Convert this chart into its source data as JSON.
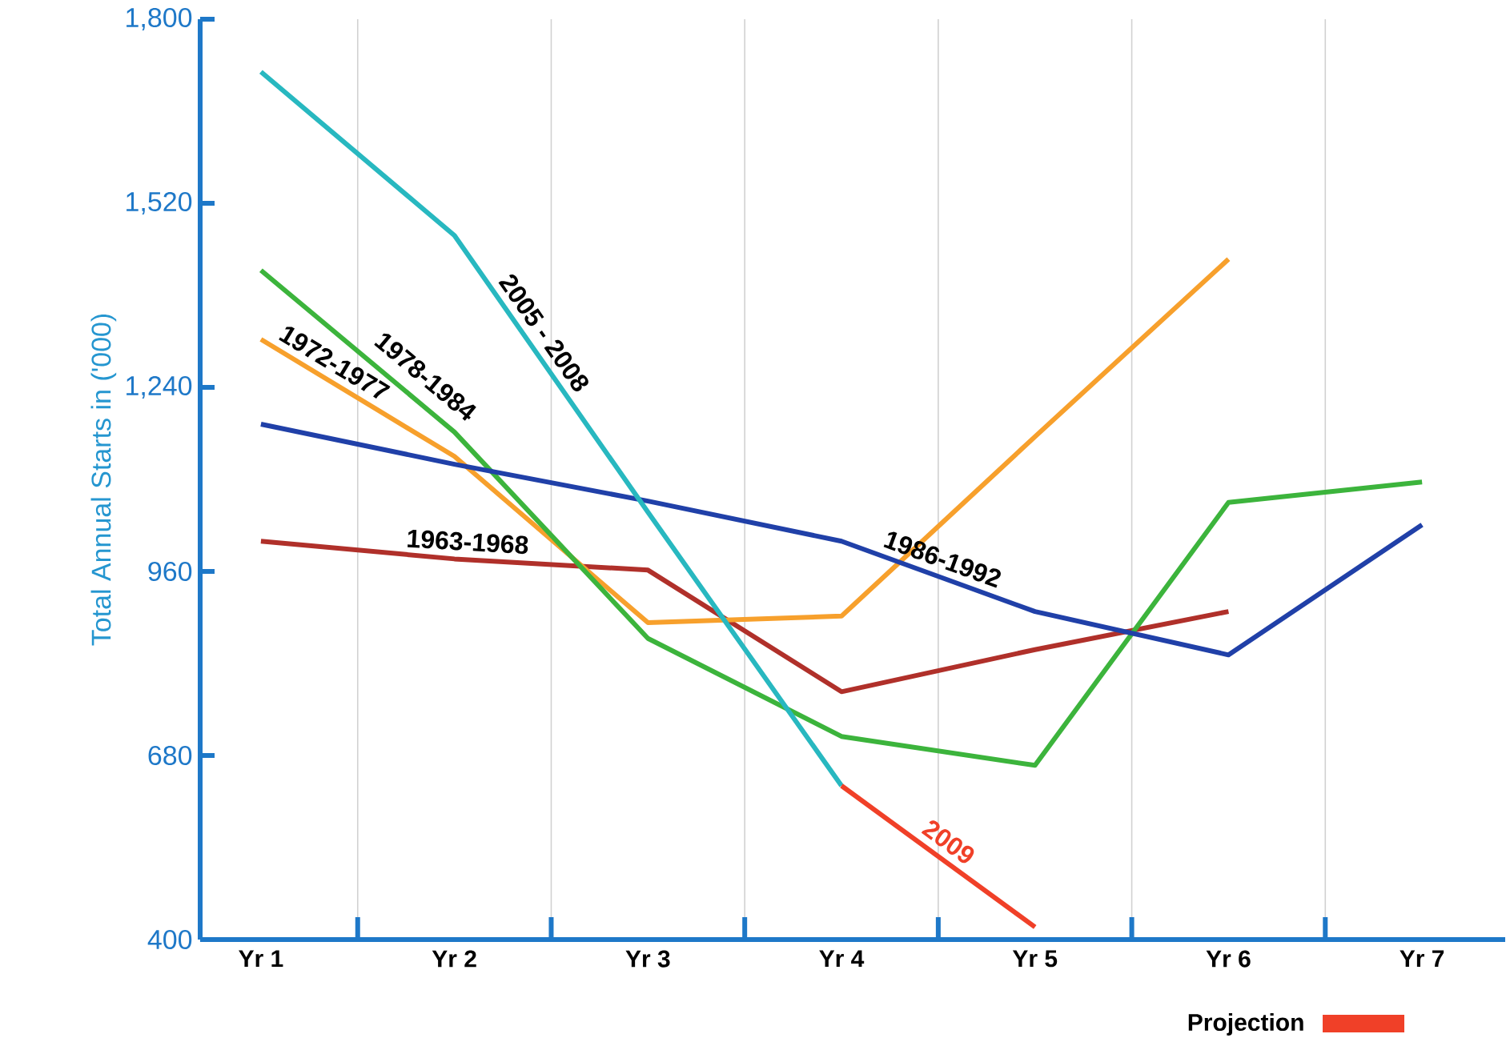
{
  "chart_data": {
    "type": "line",
    "ylabel": "Total Annual Starts in ('000)",
    "categories": [
      "Yr 1",
      "Yr 2",
      "Yr 3",
      "Yr 4",
      "Yr 5",
      "Yr 6",
      "Yr 7"
    ],
    "ylim": [
      400,
      1800
    ],
    "yticks": [
      400,
      680,
      960,
      {
        "value": 1240,
        "label": "1,240"
      },
      {
        "value": 1520,
        "label": "1,520"
      },
      {
        "value": 1800,
        "label": "1,800"
      }
    ],
    "grid": "x",
    "line_style": "solid",
    "annotations": [
      "Projection"
    ],
    "series": [
      {
        "name": "1963-1968",
        "color": "#b0302a",
        "values": [
          1006,
          979,
          962,
          777,
          841,
          899,
          null
        ]
      },
      {
        "name": "1972-1977",
        "color": "#f7a02c",
        "values": [
          1313,
          1135,
          882,
          892,
          1165,
          1435,
          null
        ]
      },
      {
        "name": "1978-1984",
        "color": "#3cb43c",
        "values": [
          1418,
          1172,
          858,
          709,
          665,
          1065,
          1096
        ]
      },
      {
        "name": "1986-1992",
        "color": "#2040a8",
        "values": [
          1184,
          1123,
          1067,
          1006,
          899,
          833,
          1031
        ]
      },
      {
        "name": "2005 - 2008",
        "color": "#28b8c0",
        "values": [
          1720,
          1471,
          1050,
          634,
          null,
          null,
          null
        ]
      },
      {
        "name": "2009",
        "color": "#f04028",
        "values": [
          null,
          null,
          null,
          634,
          419,
          null,
          null
        ]
      }
    ]
  }
}
